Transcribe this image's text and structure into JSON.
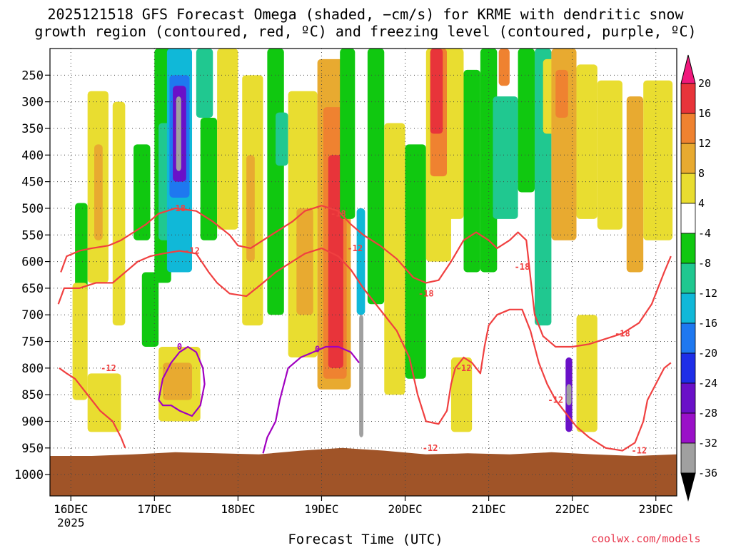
{
  "title_line1": "2025121518 GFS Forecast Omega (shaded, −cm/s) for KRME with dendritic snow",
  "title_line2": "growth region (contoured, red, ºC) and freezing level (contoured, purple, ºC)",
  "credit": "coolwx.com/models",
  "chart_data": {
    "type": "heatmap",
    "title": "2025121518 GFS Forecast Omega (shaded, −cm/s) for KRME with dendritic snow growth region (contoured, red, ºC) and freezing level (contoured, purple, ºC)",
    "xlabel": "Forecast Time (UTC)",
    "ylabel": "",
    "x_ticks": [
      {
        "label": "16DEC",
        "sub": "2025",
        "day": 16
      },
      {
        "label": "17DEC",
        "sub": "",
        "day": 17
      },
      {
        "label": "18DEC",
        "sub": "",
        "day": 18
      },
      {
        "label": "19DEC",
        "sub": "",
        "day": 19
      },
      {
        "label": "20DEC",
        "sub": "",
        "day": 20
      },
      {
        "label": "21DEC",
        "sub": "",
        "day": 21
      },
      {
        "label": "22DEC",
        "sub": "",
        "day": 22
      },
      {
        "label": "23DEC",
        "sub": "",
        "day": 23
      }
    ],
    "xlim": [
      15.75,
      23.25
    ],
    "y_ticks": [
      250,
      300,
      350,
      400,
      450,
      500,
      550,
      600,
      650,
      700,
      750,
      800,
      850,
      900,
      950,
      1000
    ],
    "ylim": [
      200,
      1040
    ],
    "colorbar": {
      "levels": [
        20,
        16,
        12,
        8,
        4,
        -4,
        -8,
        -12,
        -16,
        -20,
        -24,
        -28,
        -32,
        -36
      ],
      "colors": [
        "#f0187c",
        "#e8343a",
        "#ef8230",
        "#e8aa30",
        "#e9dd30",
        "#ffffff",
        "#10c810",
        "#20c890",
        "#10b8d8",
        "#1e78f0",
        "#1e2ee8",
        "#6a10c8",
        "#9a10c8",
        "#a0a0a0",
        "#000000"
      ]
    },
    "omega_cells": [
      {
        "t0": 16.05,
        "t1": 16.2,
        "p0": 490,
        "p1": 660,
        "v": -8
      },
      {
        "t0": 16.2,
        "t1": 16.45,
        "p0": 280,
        "p1": 640,
        "v": 6
      },
      {
        "t0": 16.28,
        "t1": 16.38,
        "p0": 380,
        "p1": 560,
        "v": 11
      },
      {
        "t0": 16.5,
        "t1": 16.65,
        "p0": 300,
        "p1": 720,
        "v": 6
      },
      {
        "t0": 16.02,
        "t1": 16.2,
        "p0": 640,
        "p1": 860,
        "v": 7
      },
      {
        "t0": 16.2,
        "t1": 16.6,
        "p0": 810,
        "p1": 920,
        "v": 6
      },
      {
        "t0": 16.75,
        "t1": 16.95,
        "p0": 380,
        "p1": 560,
        "v": -8
      },
      {
        "t0": 16.85,
        "t1": 17.05,
        "p0": 620,
        "p1": 760,
        "v": -8
      },
      {
        "t0": 17.0,
        "t1": 17.2,
        "p0": 200,
        "p1": 640,
        "v": -8
      },
      {
        "t0": 17.05,
        "t1": 17.25,
        "p0": 340,
        "p1": 560,
        "v": -12
      },
      {
        "t0": 17.15,
        "t1": 17.45,
        "p0": 200,
        "p1": 620,
        "v": -16
      },
      {
        "t0": 17.18,
        "t1": 17.42,
        "p0": 250,
        "p1": 480,
        "v": -20
      },
      {
        "t0": 17.22,
        "t1": 17.38,
        "p0": 270,
        "p1": 450,
        "v": -28
      },
      {
        "t0": 17.26,
        "t1": 17.32,
        "p0": 290,
        "p1": 430,
        "v": -36
      },
      {
        "t0": 17.5,
        "t1": 17.7,
        "p0": 200,
        "p1": 330,
        "v": -12
      },
      {
        "t0": 17.55,
        "t1": 17.75,
        "p0": 330,
        "p1": 560,
        "v": -8
      },
      {
        "t0": 17.75,
        "t1": 18.0,
        "p0": 200,
        "p1": 540,
        "v": 6
      },
      {
        "t0": 18.05,
        "t1": 18.3,
        "p0": 250,
        "p1": 720,
        "v": 6
      },
      {
        "t0": 18.1,
        "t1": 18.2,
        "p0": 400,
        "p1": 600,
        "v": 11
      },
      {
        "t0": 17.05,
        "t1": 17.55,
        "p0": 760,
        "p1": 900,
        "v": 6
      },
      {
        "t0": 17.1,
        "t1": 17.45,
        "p0": 790,
        "p1": 860,
        "v": 10
      },
      {
        "t0": 18.35,
        "t1": 18.55,
        "p0": 200,
        "p1": 700,
        "v": -8
      },
      {
        "t0": 18.45,
        "t1": 18.6,
        "p0": 320,
        "p1": 420,
        "v": -12
      },
      {
        "t0": 18.6,
        "t1": 18.95,
        "p0": 280,
        "p1": 780,
        "v": 6
      },
      {
        "t0": 18.7,
        "t1": 18.9,
        "p0": 500,
        "p1": 700,
        "v": 9
      },
      {
        "t0": 18.95,
        "t1": 19.35,
        "p0": 220,
        "p1": 840,
        "v": 10
      },
      {
        "t0": 19.02,
        "t1": 19.3,
        "p0": 310,
        "p1": 820,
        "v": 14
      },
      {
        "t0": 19.08,
        "t1": 19.26,
        "p0": 400,
        "p1": 800,
        "v": 18
      },
      {
        "t0": 19.22,
        "t1": 19.4,
        "p0": 200,
        "p1": 520,
        "v": -8
      },
      {
        "t0": 19.42,
        "t1": 19.52,
        "p0": 500,
        "p1": 700,
        "v": -16
      },
      {
        "t0": 19.45,
        "t1": 19.5,
        "p0": 700,
        "p1": 930,
        "v": -36
      },
      {
        "t0": 19.55,
        "t1": 19.75,
        "p0": 200,
        "p1": 680,
        "v": -8
      },
      {
        "t0": 19.75,
        "t1": 20.0,
        "p0": 340,
        "p1": 850,
        "v": 6
      },
      {
        "t0": 20.0,
        "t1": 20.25,
        "p0": 380,
        "p1": 820,
        "v": -8
      },
      {
        "t0": 20.25,
        "t1": 20.55,
        "p0": 200,
        "p1": 600,
        "v": 6
      },
      {
        "t0": 20.3,
        "t1": 20.5,
        "p0": 200,
        "p1": 440,
        "v": 12
      },
      {
        "t0": 20.3,
        "t1": 20.45,
        "p0": 200,
        "p1": 360,
        "v": 18
      },
      {
        "t0": 20.5,
        "t1": 20.7,
        "p0": 200,
        "p1": 520,
        "v": 7
      },
      {
        "t0": 20.7,
        "t1": 20.9,
        "p0": 240,
        "p1": 620,
        "v": -8
      },
      {
        "t0": 20.9,
        "t1": 21.1,
        "p0": 200,
        "p1": 620,
        "v": -8
      },
      {
        "t0": 21.12,
        "t1": 21.25,
        "p0": 200,
        "p1": 270,
        "v": 14
      },
      {
        "t0": 21.05,
        "t1": 21.35,
        "p0": 290,
        "p1": 520,
        "v": -12
      },
      {
        "t0": 21.35,
        "t1": 21.55,
        "p0": 200,
        "p1": 470,
        "v": -8
      },
      {
        "t0": 21.55,
        "t1": 21.75,
        "p0": 200,
        "p1": 720,
        "v": -12
      },
      {
        "t0": 21.65,
        "t1": 21.8,
        "p0": 220,
        "p1": 360,
        "v": 6
      },
      {
        "t0": 21.75,
        "t1": 22.05,
        "p0": 200,
        "p1": 560,
        "v": 10
      },
      {
        "t0": 21.8,
        "t1": 21.95,
        "p0": 240,
        "p1": 330,
        "v": 14
      },
      {
        "t0": 22.05,
        "t1": 22.3,
        "p0": 230,
        "p1": 520,
        "v": 6
      },
      {
        "t0": 22.3,
        "t1": 22.6,
        "p0": 260,
        "p1": 540,
        "v": 6
      },
      {
        "t0": 22.65,
        "t1": 22.85,
        "p0": 290,
        "p1": 620,
        "v": 8
      },
      {
        "t0": 22.85,
        "t1": 23.2,
        "p0": 260,
        "p1": 560,
        "v": 6
      },
      {
        "t0": 22.05,
        "t1": 22.3,
        "p0": 700,
        "p1": 920,
        "v": 6
      },
      {
        "t0": 21.92,
        "t1": 22.0,
        "p0": 780,
        "p1": 920,
        "v": -28
      },
      {
        "t0": 21.93,
        "t1": 21.99,
        "p0": 830,
        "p1": 870,
        "v": -34
      },
      {
        "t0": 20.55,
        "t1": 20.8,
        "p0": 780,
        "p1": 920,
        "v": 6
      }
    ],
    "ground": {
      "surface_p": [
        965,
        965,
        962,
        958,
        960,
        962,
        955,
        950,
        955,
        962,
        960,
        962,
        958,
        962,
        965,
        962
      ],
      "color": "#a05428"
    },
    "contours": [
      {
        "label": "-18",
        "color": "#f04040",
        "kind": "dgz",
        "points": [
          [
            15.88,
            620
          ],
          [
            15.95,
            590
          ],
          [
            16.1,
            580
          ],
          [
            16.25,
            575
          ],
          [
            16.45,
            570
          ],
          [
            16.6,
            560
          ],
          [
            16.75,
            545
          ],
          [
            16.9,
            530
          ],
          [
            17.05,
            510
          ],
          [
            17.25,
            500
          ],
          [
            17.5,
            505
          ],
          [
            17.7,
            525
          ],
          [
            17.9,
            550
          ],
          [
            18.0,
            570
          ],
          [
            18.15,
            575
          ],
          [
            18.3,
            560
          ],
          [
            18.5,
            540
          ],
          [
            18.65,
            525
          ],
          [
            18.8,
            505
          ],
          [
            19.0,
            495
          ],
          [
            19.2,
            505
          ],
          [
            19.35,
            530
          ],
          [
            19.5,
            550
          ],
          [
            19.7,
            570
          ],
          [
            19.9,
            595
          ],
          [
            20.1,
            630
          ],
          [
            20.25,
            640
          ],
          [
            20.4,
            635
          ],
          [
            20.55,
            600
          ],
          [
            20.7,
            560
          ],
          [
            20.85,
            545
          ],
          [
            21.0,
            560
          ],
          [
            21.1,
            575
          ],
          [
            21.25,
            560
          ],
          [
            21.35,
            545
          ],
          [
            21.45,
            560
          ],
          [
            21.5,
            630
          ],
          [
            21.55,
            700
          ],
          [
            21.65,
            740
          ],
          [
            21.8,
            760
          ],
          [
            22.0,
            760
          ],
          [
            22.2,
            755
          ],
          [
            22.4,
            745
          ],
          [
            22.6,
            735
          ],
          [
            22.8,
            715
          ],
          [
            22.95,
            680
          ],
          [
            23.1,
            620
          ],
          [
            23.18,
            590
          ]
        ]
      },
      {
        "label": "-12",
        "color": "#f04040",
        "kind": "dgz",
        "points": [
          [
            15.85,
            680
          ],
          [
            15.92,
            650
          ],
          [
            16.1,
            650
          ],
          [
            16.3,
            640
          ],
          [
            16.5,
            640
          ],
          [
            16.65,
            620
          ],
          [
            16.8,
            600
          ],
          [
            16.95,
            590
          ],
          [
            17.1,
            585
          ],
          [
            17.3,
            580
          ],
          [
            17.5,
            585
          ],
          [
            17.65,
            620
          ],
          [
            17.75,
            640
          ],
          [
            17.9,
            660
          ],
          [
            18.1,
            665
          ],
          [
            18.3,
            640
          ],
          [
            18.45,
            620
          ],
          [
            18.6,
            605
          ],
          [
            18.8,
            585
          ],
          [
            19.0,
            575
          ],
          [
            19.2,
            590
          ],
          [
            19.35,
            615
          ],
          [
            19.5,
            650
          ],
          [
            19.7,
            690
          ],
          [
            19.9,
            730
          ],
          [
            20.05,
            780
          ],
          [
            20.15,
            850
          ],
          [
            20.25,
            900
          ],
          [
            20.4,
            905
          ],
          [
            20.5,
            880
          ],
          [
            20.55,
            830
          ],
          [
            20.6,
            800
          ],
          [
            20.7,
            780
          ],
          [
            20.8,
            790
          ],
          [
            20.9,
            810
          ],
          [
            20.95,
            760
          ],
          [
            21.0,
            720
          ],
          [
            21.1,
            700
          ],
          [
            21.25,
            690
          ],
          [
            21.4,
            690
          ],
          [
            21.5,
            730
          ],
          [
            21.6,
            790
          ],
          [
            21.7,
            830
          ],
          [
            21.8,
            860
          ],
          [
            21.9,
            880
          ],
          [
            22.05,
            910
          ],
          [
            22.2,
            930
          ],
          [
            22.4,
            950
          ],
          [
            22.6,
            955
          ],
          [
            22.75,
            940
          ],
          [
            22.85,
            900
          ],
          [
            22.9,
            860
          ],
          [
            23.0,
            830
          ],
          [
            23.1,
            800
          ],
          [
            23.18,
            790
          ]
        ]
      },
      {
        "label": "-12",
        "color": "#f04040",
        "kind": "dgz-low",
        "points": [
          [
            15.86,
            800
          ],
          [
            15.95,
            810
          ],
          [
            16.05,
            820
          ],
          [
            16.2,
            850
          ],
          [
            16.35,
            880
          ],
          [
            16.5,
            900
          ],
          [
            16.6,
            930
          ],
          [
            16.65,
            950
          ]
        ]
      },
      {
        "label": "0",
        "color": "#a000c0",
        "kind": "frz",
        "points": [
          [
            17.05,
            860
          ],
          [
            17.1,
            820
          ],
          [
            17.2,
            790
          ],
          [
            17.3,
            770
          ],
          [
            17.4,
            760
          ],
          [
            17.5,
            770
          ],
          [
            17.58,
            800
          ],
          [
            17.6,
            830
          ],
          [
            17.55,
            870
          ],
          [
            17.45,
            890
          ],
          [
            17.3,
            880
          ],
          [
            17.2,
            870
          ],
          [
            17.1,
            870
          ],
          [
            17.05,
            860
          ]
        ]
      },
      {
        "label": "0",
        "color": "#a000c0",
        "kind": "frz",
        "points": [
          [
            18.3,
            960
          ],
          [
            18.35,
            930
          ],
          [
            18.45,
            900
          ],
          [
            18.5,
            860
          ],
          [
            18.6,
            800
          ],
          [
            18.75,
            780
          ],
          [
            18.9,
            770
          ],
          [
            19.05,
            760
          ],
          [
            19.2,
            760
          ],
          [
            19.35,
            770
          ],
          [
            19.45,
            790
          ]
        ]
      }
    ],
    "contour_labels": [
      {
        "text": "-18",
        "t": 17.28,
        "p": 500,
        "color": "#f04040"
      },
      {
        "text": "-12",
        "t": 17.45,
        "p": 580,
        "color": "#f04040"
      },
      {
        "text": "-18",
        "t": 19.2,
        "p": 510,
        "color": "#f04040"
      },
      {
        "text": "-12",
        "t": 19.4,
        "p": 575,
        "color": "#f04040"
      },
      {
        "text": "-18",
        "t": 20.25,
        "p": 660,
        "color": "#f04040"
      },
      {
        "text": "-18",
        "t": 21.4,
        "p": 610,
        "color": "#f04040"
      },
      {
        "text": "-12",
        "t": 20.7,
        "p": 800,
        "color": "#f04040"
      },
      {
        "text": "-12",
        "t": 20.3,
        "p": 950,
        "color": "#f04040"
      },
      {
        "text": "-12",
        "t": 21.8,
        "p": 860,
        "color": "#f04040"
      },
      {
        "text": "-18",
        "t": 22.6,
        "p": 735,
        "color": "#f04040"
      },
      {
        "text": "-12",
        "t": 22.8,
        "p": 955,
        "color": "#f04040"
      },
      {
        "text": "-12",
        "t": 16.45,
        "p": 800,
        "color": "#f04040"
      },
      {
        "text": "0",
        "t": 17.3,
        "p": 760,
        "color": "#a000c0"
      },
      {
        "text": "0",
        "t": 18.95,
        "p": 765,
        "color": "#a000c0"
      }
    ]
  }
}
